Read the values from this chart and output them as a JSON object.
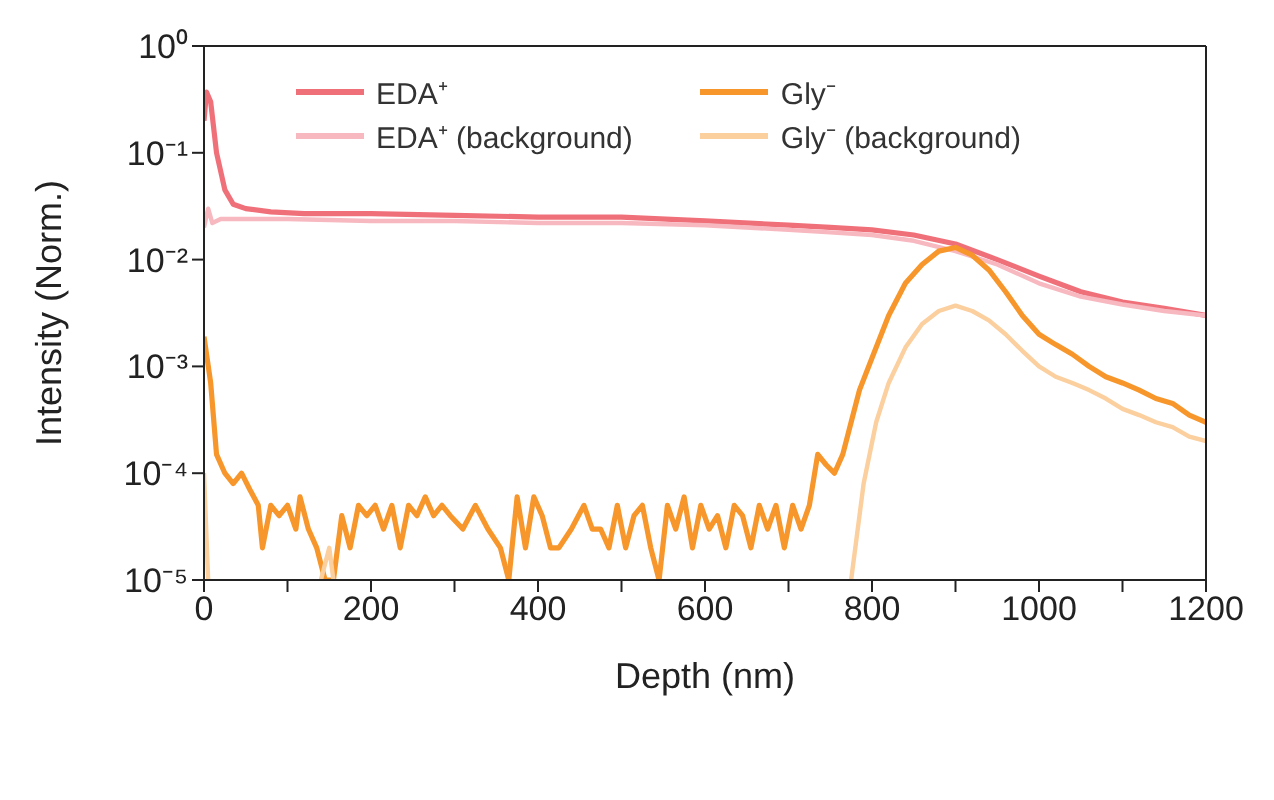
{
  "chart_data": {
    "type": "line",
    "xlabel": "Depth (nm)",
    "ylabel": "Intensity (Norm.)",
    "log": "y",
    "legend": "top",
    "line_style": "solid",
    "marker": "none",
    "xlim": [
      0,
      1200
    ],
    "xticks": [
      0,
      {
        "value": 100,
        "label": null
      },
      200,
      {
        "value": 300,
        "label": null
      },
      400,
      {
        "value": 500,
        "label": null
      },
      600,
      {
        "value": 700,
        "label": null
      },
      800,
      {
        "value": 900,
        "label": null
      },
      1000,
      {
        "value": 1100,
        "label": null
      },
      1200
    ],
    "ylim": [
      1e-05,
      1
    ],
    "yticks": [
      {
        "value": 1e-05,
        "label": "10⁻⁵"
      },
      {
        "value": 0.0001,
        "label": "10⁻⁴"
      },
      {
        "value": 0.001,
        "label": "10⁻³"
      },
      {
        "value": 0.01,
        "label": "10⁻²"
      },
      {
        "value": 0.1,
        "label": "10⁻¹"
      },
      {
        "value": 1,
        "label": "10⁰"
      }
    ],
    "series": [
      {
        "name": "EDA⁺",
        "color": "#f0707a",
        "x": [
          0,
          3,
          8,
          15,
          25,
          35,
          50,
          80,
          120,
          200,
          300,
          400,
          500,
          600,
          700,
          750,
          800,
          850,
          900,
          950,
          1000,
          1050,
          1100,
          1150,
          1200
        ],
        "values": [
          0.2,
          0.37,
          0.3,
          0.1,
          0.045,
          0.033,
          0.03,
          0.028,
          0.027,
          0.027,
          0.026,
          0.025,
          0.025,
          0.023,
          0.021,
          0.02,
          0.019,
          0.017,
          0.014,
          0.01,
          0.007,
          0.005,
          0.004,
          0.0035,
          0.003
        ]
      },
      {
        "name": "EDA⁺ (background)",
        "color": "#f7b8c0",
        "x": [
          0,
          5,
          10,
          20,
          50,
          100,
          200,
          300,
          400,
          500,
          600,
          700,
          750,
          800,
          850,
          900,
          950,
          1000,
          1050,
          1100,
          1150,
          1200
        ],
        "values": [
          0.02,
          0.03,
          0.022,
          0.024,
          0.024,
          0.024,
          0.023,
          0.023,
          0.022,
          0.022,
          0.021,
          0.019,
          0.018,
          0.017,
          0.015,
          0.012,
          0.009,
          0.006,
          0.0045,
          0.0038,
          0.0033,
          0.003
        ]
      },
      {
        "name": "Gly⁻",
        "color": "#f7962a",
        "x": [
          0,
          8,
          15,
          25,
          35,
          45,
          55,
          65,
          70,
          80,
          90,
          100,
          110,
          115,
          125,
          135,
          145,
          155,
          165,
          175,
          185,
          195,
          205,
          215,
          225,
          235,
          245,
          255,
          265,
          275,
          285,
          295,
          310,
          325,
          340,
          355,
          365,
          375,
          385,
          395,
          405,
          415,
          425,
          440,
          455,
          465,
          475,
          485,
          495,
          505,
          515,
          525,
          535,
          545,
          555,
          565,
          575,
          585,
          595,
          605,
          615,
          625,
          635,
          645,
          655,
          665,
          675,
          685,
          695,
          705,
          715,
          725,
          735,
          745,
          755,
          765,
          775,
          785,
          800,
          820,
          840,
          860,
          880,
          900,
          920,
          940,
          960,
          980,
          1000,
          1020,
          1040,
          1060,
          1080,
          1100,
          1120,
          1140,
          1160,
          1180,
          1200
        ],
        "values": [
          0.0019,
          0.0007,
          0.00015,
          0.0001,
          8e-05,
          0.0001,
          7e-05,
          5e-05,
          2e-05,
          5e-05,
          4e-05,
          5e-05,
          3e-05,
          6e-05,
          3e-05,
          2e-05,
          1e-05,
          1e-05,
          4e-05,
          2e-05,
          5e-05,
          4e-05,
          5e-05,
          3e-05,
          5e-05,
          2e-05,
          5e-05,
          4e-05,
          6e-05,
          4e-05,
          5e-05,
          4e-05,
          3e-05,
          5e-05,
          3e-05,
          2e-05,
          1e-05,
          6e-05,
          2e-05,
          6e-05,
          4e-05,
          2e-05,
          2e-05,
          3e-05,
          5e-05,
          3e-05,
          3e-05,
          2e-05,
          5e-05,
          2e-05,
          4e-05,
          5e-05,
          2e-05,
          1e-05,
          5e-05,
          3e-05,
          6e-05,
          2e-05,
          5e-05,
          3e-05,
          4e-05,
          2e-05,
          5e-05,
          4e-05,
          2e-05,
          5e-05,
          3e-05,
          5e-05,
          2e-05,
          5e-05,
          3e-05,
          5e-05,
          0.00015,
          0.00012,
          0.0001,
          0.00015,
          0.0003,
          0.0006,
          0.0012,
          0.003,
          0.006,
          0.009,
          0.012,
          0.013,
          0.011,
          0.008,
          0.005,
          0.003,
          0.002,
          0.0016,
          0.0013,
          0.001,
          0.0008,
          0.0007,
          0.0006,
          0.0005,
          0.00045,
          0.00035,
          0.0003
        ]
      },
      {
        "name": "Gly⁻ (background)",
        "color": "#fbcf9e",
        "x": [
          0,
          5,
          10,
          140,
          150,
          155,
          160,
          775,
          790,
          805,
          820,
          840,
          860,
          880,
          900,
          920,
          940,
          960,
          980,
          1000,
          1020,
          1040,
          1060,
          1080,
          1100,
          1120,
          1140,
          1160,
          1180,
          1200
        ],
        "values": [
          0.0001,
          1e-05,
          null,
          1e-05,
          2e-05,
          1e-05,
          null,
          1e-05,
          8e-05,
          0.0003,
          0.0007,
          0.0015,
          0.0025,
          0.0033,
          0.0037,
          0.0033,
          0.0027,
          0.002,
          0.0014,
          0.001,
          0.0008,
          0.0007,
          0.0006,
          0.0005,
          0.0004,
          0.00035,
          0.0003,
          0.00027,
          0.00022,
          0.0002
        ]
      }
    ]
  }
}
